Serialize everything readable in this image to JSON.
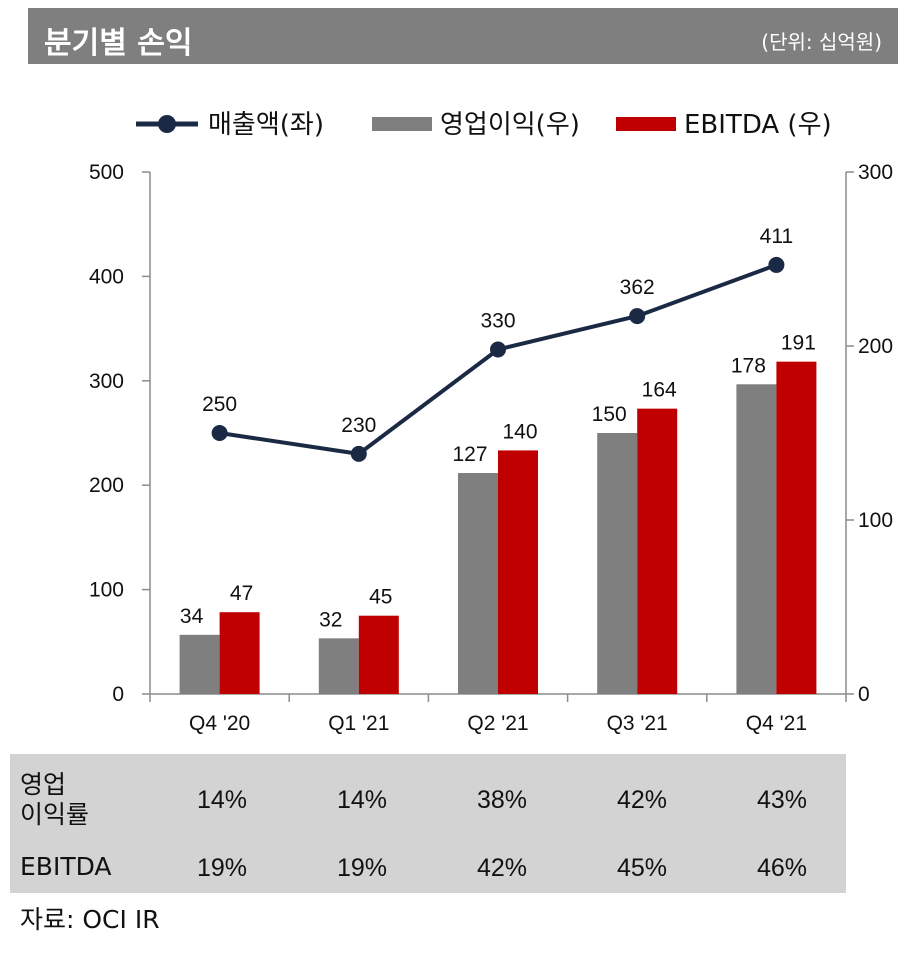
{
  "header": {
    "title": "분기별 손익",
    "unit": "(단위: 십억원)"
  },
  "colors": {
    "title_bg": "#7f7f7f",
    "revenue_line": "#1b2a44",
    "op_income_bar": "#7f7f7f",
    "ebitda_bar": "#c00000",
    "table_bg": "#d3d3d3"
  },
  "chart_data": {
    "type": "bar+line",
    "categories": [
      "Q4 '20",
      "Q1 '21",
      "Q2 '21",
      "Q3 '21",
      "Q4 '21"
    ],
    "series": [
      {
        "name": "매출액(좌)",
        "type": "line",
        "axis": "left",
        "values": [
          250,
          230,
          330,
          362,
          411
        ]
      },
      {
        "name": "영업이익(우)",
        "type": "bar",
        "axis": "right",
        "values": [
          34,
          32,
          127,
          150,
          178
        ]
      },
      {
        "name": "EBITDA (우)",
        "type": "bar",
        "axis": "right",
        "values": [
          47,
          45,
          140,
          164,
          191
        ]
      }
    ],
    "left_axis": {
      "range": [
        0,
        500
      ],
      "ticks": [
        "0",
        "100",
        "200",
        "300",
        "400",
        "500"
      ]
    },
    "right_axis": {
      "range": [
        0,
        300
      ],
      "ticks": [
        "0",
        "100",
        "200",
        "300"
      ]
    },
    "grid": false,
    "legend": "top"
  },
  "table": {
    "rows": [
      {
        "label_line1": "영업",
        "label_line2": "이익률",
        "values": [
          "14%",
          "14%",
          "38%",
          "42%",
          "43%"
        ]
      },
      {
        "label": "EBITDA",
        "values": [
          "19%",
          "19%",
          "42%",
          "45%",
          "46%"
        ]
      }
    ]
  },
  "source": "자료: OCI IR"
}
